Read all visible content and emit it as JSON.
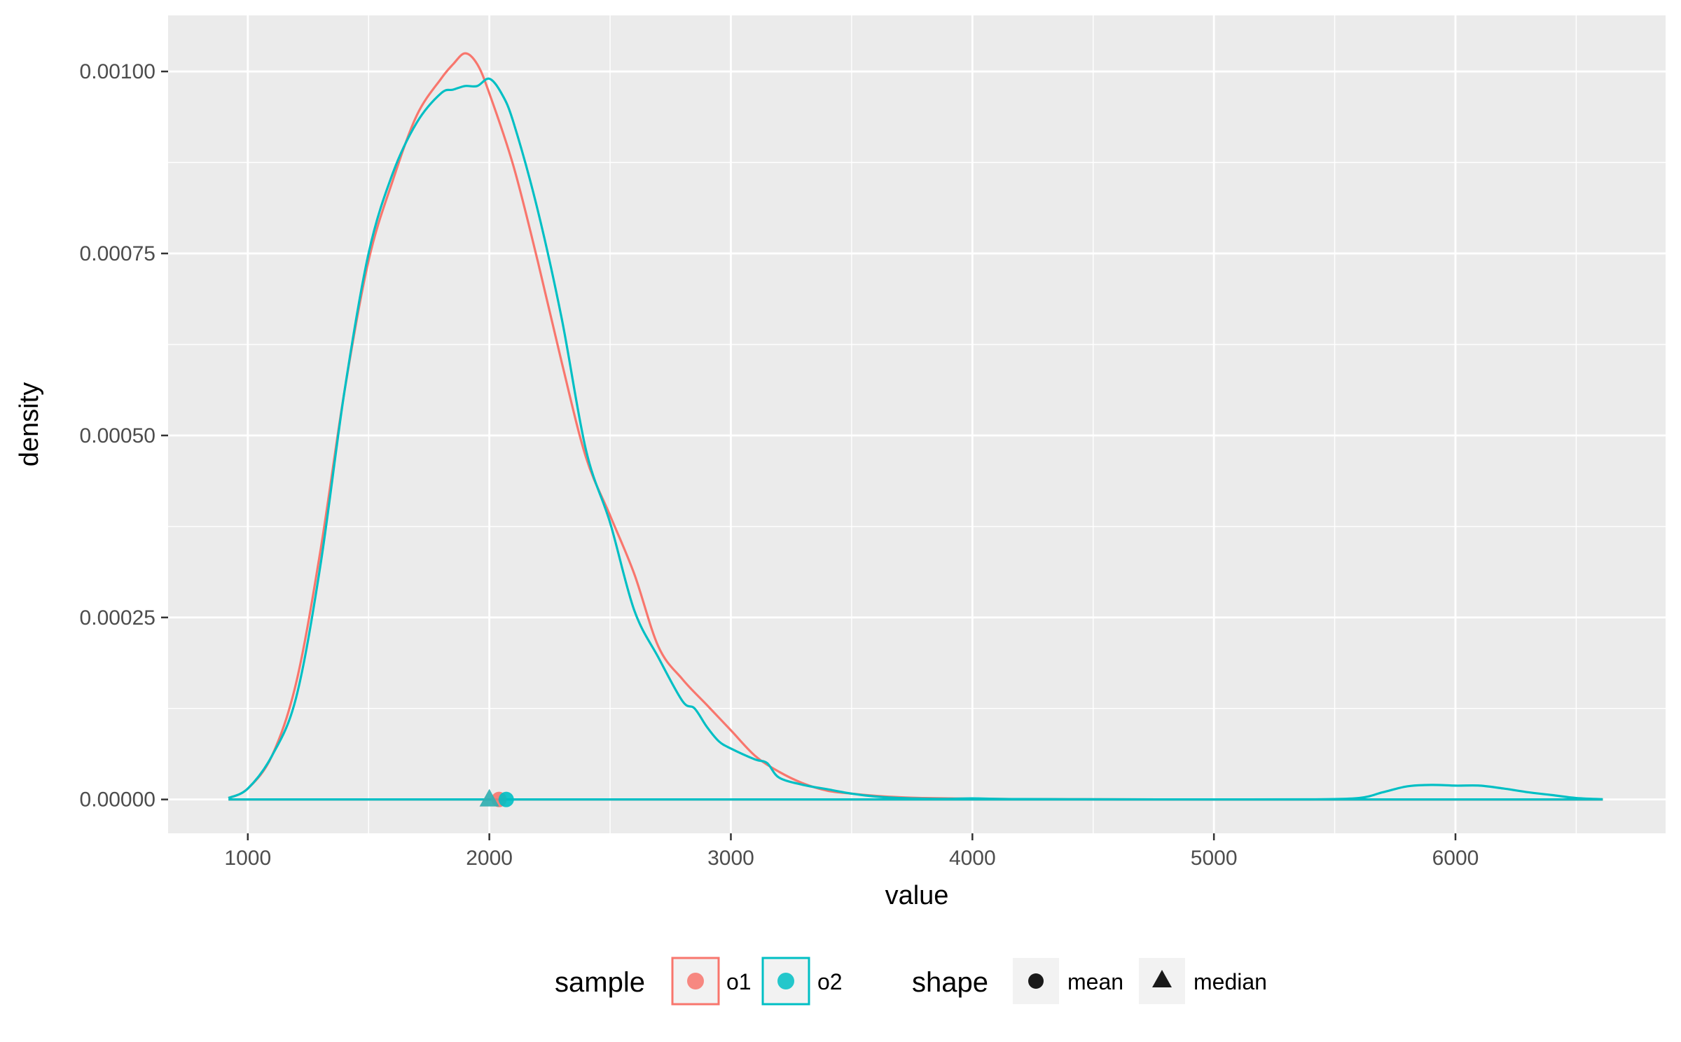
{
  "chart_data": {
    "type": "line",
    "subtype": "density",
    "xlabel": "value",
    "ylabel": "density",
    "xlim": [
      670,
      6870
    ],
    "ylim": [
      -4.65e-05,
      0.001077
    ],
    "x_ticks": [
      1000,
      2000,
      3000,
      4000,
      5000,
      6000
    ],
    "x_tick_labels": [
      "1000",
      "2000",
      "3000",
      "4000",
      "5000",
      "6000"
    ],
    "y_ticks": [
      0,
      0.00025,
      0.0005,
      0.00075,
      0.001
    ],
    "y_tick_labels": [
      "0.00000",
      "0.00025",
      "0.00050",
      "0.00075",
      "0.00100"
    ],
    "grid": true,
    "panel_background": "#ebebeb",
    "legend_position": "bottom",
    "series": [
      {
        "name": "o1",
        "color": "#f8766d",
        "x": [
          920,
          1000,
          1100,
          1200,
          1300,
          1400,
          1500,
          1600,
          1700,
          1800,
          1850,
          1900,
          1950,
          2000,
          2100,
          2200,
          2300,
          2400,
          2500,
          2600,
          2700,
          2800,
          2900,
          3000,
          3100,
          3200,
          3300,
          3400,
          3500,
          3600,
          3700,
          3800,
          3900,
          4000,
          4100,
          4200,
          4400,
          4600,
          5000,
          5500,
          6000,
          6610
        ],
        "values": [
          2e-06,
          1.5e-05,
          6e-05,
          0.00016,
          0.00034,
          0.00056,
          0.00074,
          0.00085,
          0.00094,
          0.00099,
          0.00101,
          0.001025,
          0.00101,
          0.00097,
          0.00087,
          0.00074,
          0.0006,
          0.00047,
          0.00039,
          0.00031,
          0.00021,
          0.000165,
          0.00013,
          9.5e-05,
          6e-05,
          3.8e-05,
          2.2e-05,
          1.2e-05,
          8e-06,
          5e-06,
          3e-06,
          2e-06,
          1.5e-06,
          1e-06,
          8e-07,
          5e-07,
          3e-07,
          2e-07,
          1e-07,
          1e-07,
          1e-07,
          1e-07
        ]
      },
      {
        "name": "o2",
        "color": "#00bfc4",
        "x": [
          920,
          1000,
          1100,
          1200,
          1300,
          1400,
          1500,
          1600,
          1700,
          1800,
          1850,
          1900,
          1950,
          2000,
          2050,
          2100,
          2200,
          2300,
          2400,
          2500,
          2600,
          2700,
          2800,
          2850,
          2900,
          2950,
          3000,
          3100,
          3150,
          3200,
          3300,
          3400,
          3500,
          3600,
          3700,
          3800,
          3900,
          4000,
          4100,
          4200,
          4400,
          4600,
          5000,
          5400,
          5600,
          5700,
          5800,
          5900,
          6000,
          6100,
          6200,
          6300,
          6400,
          6500,
          6610
        ],
        "values": [
          2e-06,
          1.5e-05,
          6e-05,
          0.00014,
          0.00032,
          0.00056,
          0.00075,
          0.00086,
          0.00093,
          0.00097,
          0.000975,
          0.00098,
          0.00098,
          0.00099,
          0.00097,
          0.00093,
          0.00081,
          0.00066,
          0.00048,
          0.00038,
          0.00026,
          0.000195,
          0.000135,
          0.000125,
          0.0001,
          8e-05,
          7e-05,
          5.5e-05,
          5e-05,
          3e-05,
          2e-05,
          1.4e-05,
          8e-06,
          4e-06,
          2e-06,
          1e-06,
          8e-07,
          1.5e-06,
          8e-07,
          5e-07,
          3e-07,
          2e-07,
          1e-07,
          2e-07,
          2e-06,
          1e-05,
          1.8e-05,
          2e-05,
          1.9e-05,
          1.9e-05,
          1.5e-05,
          1e-05,
          6e-06,
          2e-06,
          3e-07
        ]
      }
    ],
    "rug_baseline": 0,
    "rug_range": [
      920,
      6610
    ],
    "summary_points": [
      {
        "sample": "o1",
        "stat": "mean",
        "x": 2040,
        "y": 0
      },
      {
        "sample": "o1",
        "stat": "median",
        "x": 2000,
        "y": 0
      },
      {
        "sample": "o2",
        "stat": "mean",
        "x": 2070,
        "y": 0
      },
      {
        "sample": "o2",
        "stat": "median",
        "x": 2000,
        "y": 0
      }
    ],
    "legend": {
      "sample": {
        "title": "sample",
        "items": [
          {
            "label": "o1",
            "color": "#f8766d"
          },
          {
            "label": "o2",
            "color": "#00bfc4"
          }
        ]
      },
      "shape": {
        "title": "shape",
        "items": [
          {
            "label": "mean",
            "shape": "circle"
          },
          {
            "label": "median",
            "shape": "triangle"
          }
        ]
      }
    }
  }
}
